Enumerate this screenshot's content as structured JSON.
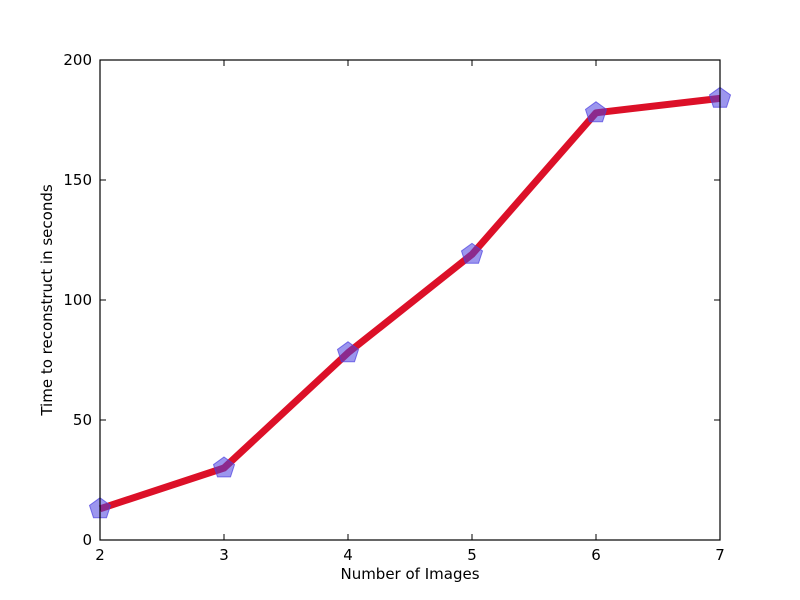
{
  "chart_data": {
    "type": "line",
    "title": "",
    "xlabel": "Number of Images",
    "ylabel": "Time to reconstruct in seconds",
    "x": [
      2,
      3,
      4,
      5,
      6,
      7
    ],
    "series": [
      {
        "values": [
          13,
          30,
          78,
          119,
          178,
          184
        ],
        "line_color": "#dc1028",
        "marker": "pentagon",
        "marker_color": "#4a3fe0"
      }
    ],
    "xlim": [
      2,
      7
    ],
    "ylim": [
      0,
      200
    ],
    "xticks": [
      2,
      3,
      4,
      5,
      6,
      7
    ],
    "yticks": [
      0,
      50,
      100,
      150,
      200
    ],
    "grid": false,
    "legend": "none"
  }
}
